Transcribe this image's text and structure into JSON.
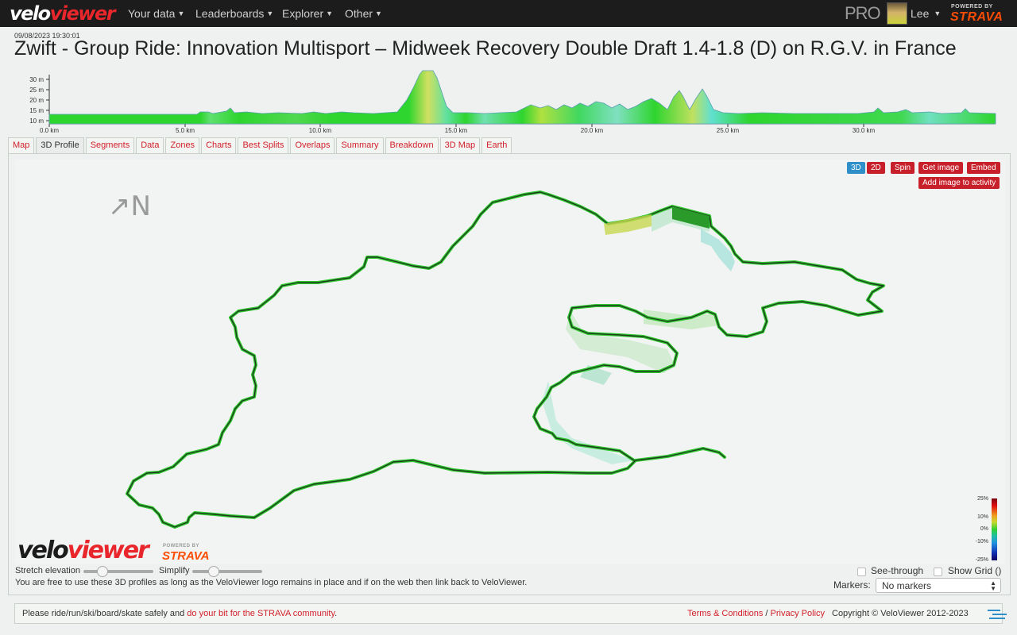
{
  "nav": {
    "logo_part1": "velo",
    "logo_part2": "viewer",
    "items": [
      {
        "label": "Your data"
      },
      {
        "label": "Leaderboards"
      },
      {
        "label": "Explorer"
      },
      {
        "label": "Other"
      }
    ],
    "pro_label": "PRO",
    "user_name": "Lee",
    "powered_by": "POWERED BY",
    "strava": "STRAVA"
  },
  "activity": {
    "date": "09/08/2023 19:30:01",
    "title": "Zwift - Group Ride: Innovation Multisport – Midweek Recovery Double Draft 1.4-1.8 (D) on R.G.V. in France"
  },
  "profile": {
    "y_ticks": [
      "30 m",
      "25 m",
      "20 m",
      "15 m",
      "10 m"
    ],
    "x_ticks": [
      "0.0 km",
      "5.0 km",
      "10.0 km",
      "15.0 km",
      "20.0 km",
      "25.0 km",
      "30.0 km"
    ]
  },
  "tabs": [
    {
      "label": "Map"
    },
    {
      "label": "3D Profile",
      "active": true
    },
    {
      "label": "Segments"
    },
    {
      "label": "Data"
    },
    {
      "label": "Zones"
    },
    {
      "label": "Charts"
    },
    {
      "label": "Best Splits"
    },
    {
      "label": "Overlaps"
    },
    {
      "label": "Summary"
    },
    {
      "label": "Breakdown"
    },
    {
      "label": "3D Map"
    },
    {
      "label": "Earth"
    }
  ],
  "viewer": {
    "btn_3d": "3D",
    "btn_2d": "2D",
    "btn_spin": "Spin",
    "btn_get_image": "Get image",
    "btn_embed": "Embed",
    "btn_add_image": "Add image to activity",
    "north_arrow": "↗N",
    "legend": [
      "25%",
      "10%",
      "0%",
      "-10%",
      "-25%"
    ],
    "watermark_part1": "velo",
    "watermark_part2": "viewer",
    "watermark_powered": "POWERED BY",
    "watermark_strava": "STRAVA"
  },
  "controls": {
    "stretch_label": "Stretch elevation",
    "simplify_label": "Simplify",
    "see_through_label": "See-through",
    "show_grid_label": "Show Grid ()",
    "usage_note": "You are free to use these 3D profiles as long as the VeloViewer logo remains in place and if on the web then link back to VeloViewer.",
    "markers_label": "Markers:",
    "markers_value": "No markers"
  },
  "footer": {
    "safety_text": "Please ride/run/ski/board/skate safely and ",
    "safety_link": "do your bit for the STRAVA community",
    "safety_end": ".",
    "terms_link": "Terms & Conditions",
    "separator": " / ",
    "privacy_link": "Privacy Policy",
    "copyright": "Copyright © VeloViewer 2012-2023"
  },
  "colors": {
    "accent_red": "#d2202a",
    "strava_orange": "#fc4c02",
    "nav_bg": "#1c1c1c",
    "route_green": "#2ec82e"
  }
}
